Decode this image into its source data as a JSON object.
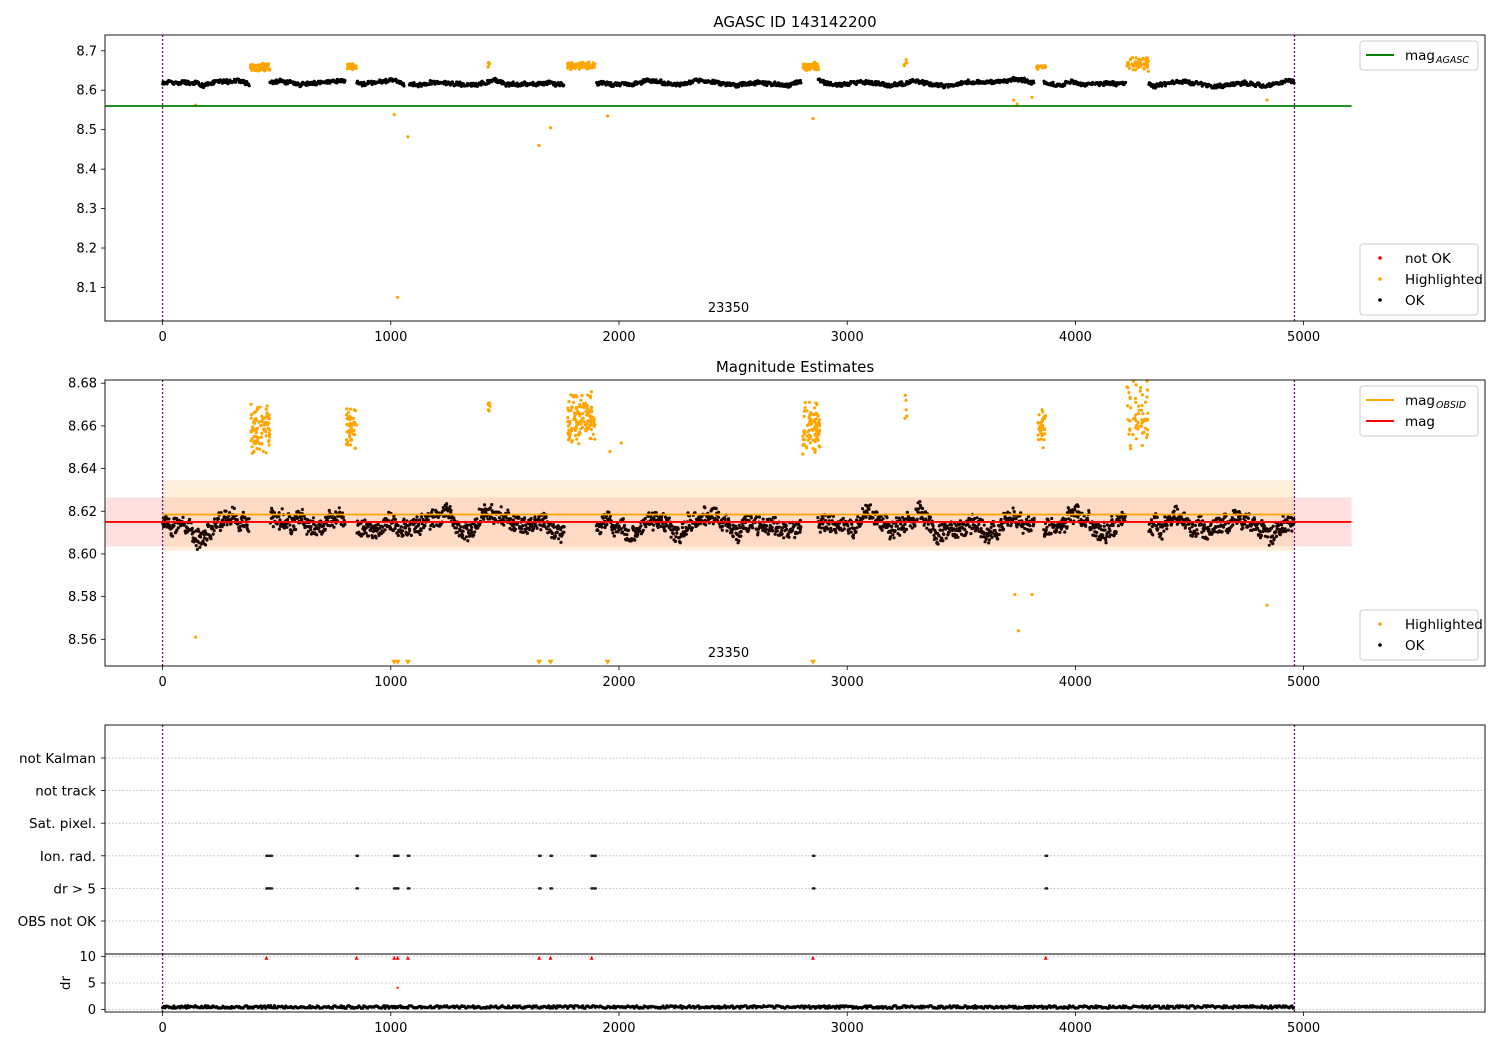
{
  "figure": {
    "background": "#ffffff"
  },
  "chart_data": [
    {
      "id": "agasc",
      "type": "scatter",
      "title": "AGASC ID 143142200",
      "xlim": [
        -250,
        5750
      ],
      "ylim": [
        8.015,
        8.74
      ],
      "xticks": [
        0,
        1000,
        2000,
        3000,
        4000,
        5000
      ],
      "yticks": [
        8.1,
        8.2,
        8.3,
        8.4,
        8.5,
        8.6,
        8.7
      ],
      "ytick_decimals": 1,
      "vlines": [
        0,
        4960
      ],
      "vline_color": "#800080",
      "obs_label": {
        "text": "23350",
        "x": 2480
      },
      "hlines": [
        {
          "y": 8.56,
          "x0": -250,
          "x1": 5210,
          "color": "#008000",
          "label": "mag_AGASC"
        }
      ],
      "baseline": {
        "mean": 8.618,
        "amp": 0.013,
        "x0": 0,
        "x1": 4960,
        "n": 1900,
        "seed": 11,
        "color": "#000000"
      },
      "gaps": [
        [
          380,
          470
        ],
        [
          800,
          850
        ],
        [
          1060,
          1080
        ],
        [
          1760,
          1900
        ],
        [
          2800,
          2870
        ],
        [
          3820,
          3860
        ],
        [
          4220,
          4320
        ]
      ],
      "clusters": [
        {
          "x0": 385,
          "x1": 470,
          "y0": 8.648,
          "y1": 8.668,
          "n": 70
        },
        {
          "x0": 805,
          "x1": 848,
          "y0": 8.652,
          "y1": 8.668,
          "n": 40
        },
        {
          "x0": 1425,
          "x1": 1435,
          "y0": 8.658,
          "y1": 8.672,
          "n": 6
        },
        {
          "x0": 1775,
          "x1": 1895,
          "y0": 8.652,
          "y1": 8.672,
          "n": 90
        },
        {
          "x0": 2805,
          "x1": 2875,
          "y0": 8.65,
          "y1": 8.67,
          "n": 60
        },
        {
          "x0": 3250,
          "x1": 3262,
          "y0": 8.66,
          "y1": 8.678,
          "n": 5
        },
        {
          "x0": 3830,
          "x1": 3870,
          "y0": 8.65,
          "y1": 8.666,
          "n": 20
        },
        {
          "x0": 4225,
          "x1": 4320,
          "y0": 8.65,
          "y1": 8.682,
          "n": 60
        }
      ],
      "outliers": [
        [
          145,
          8.562
        ],
        [
          1015,
          8.538
        ],
        [
          1030,
          8.075
        ],
        [
          1075,
          8.482
        ],
        [
          1650,
          8.46
        ],
        [
          1700,
          8.505
        ],
        [
          1950,
          8.535
        ],
        [
          2850,
          8.528
        ],
        [
          3730,
          8.575
        ],
        [
          3745,
          8.565
        ],
        [
          3810,
          8.582
        ],
        [
          4840,
          8.575
        ]
      ],
      "highlight_color": "#ffa500",
      "legends": [
        {
          "loc": "top-right",
          "items": [
            {
              "kind": "line",
              "color": "#008000",
              "label": "mag",
              "sub": "AGASC"
            }
          ]
        },
        {
          "loc": "bottom-right",
          "items": [
            {
              "kind": "dot",
              "color": "#ff0000",
              "label": "not OK"
            },
            {
              "kind": "dot",
              "color": "#ffa500",
              "label": "Highlighted"
            },
            {
              "kind": "dot",
              "color": "#000000",
              "label": "OK"
            }
          ]
        }
      ]
    },
    {
      "id": "estimates",
      "type": "scatter",
      "title": "Magnitude Estimates",
      "xlim": [
        -250,
        5750
      ],
      "ylim": [
        8.5475,
        8.6815
      ],
      "xticks": [
        0,
        1000,
        2000,
        3000,
        4000,
        5000
      ],
      "yticks": [
        8.56,
        8.58,
        8.6,
        8.62,
        8.64,
        8.66,
        8.68
      ],
      "ytick_decimals": 2,
      "vlines": [
        0,
        4960
      ],
      "vline_color": "#800080",
      "obs_label": {
        "text": "23350",
        "x": 2480
      },
      "bands": [
        {
          "y0": 8.6035,
          "y1": 8.6265,
          "x0": -250,
          "x1": 5210,
          "color": "#ff9999",
          "opacity": 0.3
        },
        {
          "y0": 8.6015,
          "y1": 8.6345,
          "x0": 0,
          "x1": 4960,
          "color": "#ffcc88",
          "opacity": 0.3
        }
      ],
      "hlines": [
        {
          "y": 8.6185,
          "x0": 0,
          "x1": 4960,
          "color": "#ffa500",
          "label": "mag_OBSID"
        },
        {
          "y": 8.615,
          "x0": -250,
          "x1": 5210,
          "color": "#ff0000",
          "label": "mag"
        }
      ],
      "baseline": {
        "mean": 8.614,
        "amp": 0.011,
        "x0": 0,
        "x1": 4960,
        "n": 2600,
        "seed": 23,
        "color": "#1a0500"
      },
      "gaps": [
        [
          380,
          470
        ],
        [
          800,
          850
        ],
        [
          1760,
          1900
        ],
        [
          2800,
          2870
        ],
        [
          3820,
          3860
        ],
        [
          4220,
          4320
        ]
      ],
      "clusters": [
        {
          "x0": 385,
          "x1": 470,
          "y0": 8.648,
          "y1": 8.67,
          "n": 90
        },
        {
          "x0": 805,
          "x1": 850,
          "y0": 8.65,
          "y1": 8.67,
          "n": 50
        },
        {
          "x0": 1425,
          "x1": 1435,
          "y0": 8.662,
          "y1": 8.673,
          "n": 6
        },
        {
          "x0": 1775,
          "x1": 1895,
          "y0": 8.652,
          "y1": 8.675,
          "n": 130
        },
        {
          "x0": 2805,
          "x1": 2880,
          "y0": 8.648,
          "y1": 8.673,
          "n": 90
        },
        {
          "x0": 3250,
          "x1": 3262,
          "y0": 8.656,
          "y1": 8.677,
          "n": 5
        },
        {
          "x0": 3835,
          "x1": 3870,
          "y0": 8.65,
          "y1": 8.669,
          "n": 35
        },
        {
          "x0": 4225,
          "x1": 4320,
          "y0": 8.65,
          "y1": 8.681,
          "n": 60
        }
      ],
      "outliers": [
        [
          145,
          8.561
        ],
        [
          1960,
          8.648
        ],
        [
          2010,
          8.652
        ],
        [
          3735,
          8.581
        ],
        [
          3750,
          8.564
        ],
        [
          3810,
          8.581
        ],
        [
          4840,
          8.576
        ]
      ],
      "triangles": [
        1015,
        1030,
        1075,
        1650,
        1700,
        1950,
        2850
      ],
      "triangle_y": 8.549,
      "highlight_color": "#ffa500",
      "legends": [
        {
          "loc": "top-right",
          "items": [
            {
              "kind": "line",
              "color": "#ffa500",
              "label": "mag",
              "sub": "OBSID"
            },
            {
              "kind": "line",
              "color": "#ff0000",
              "label": "mag"
            }
          ]
        },
        {
          "loc": "bottom-right",
          "items": [
            {
              "kind": "dot",
              "color": "#ffa500",
              "label": "Highlighted"
            },
            {
              "kind": "dot",
              "color": "#000000",
              "label": "OK"
            }
          ]
        }
      ]
    },
    {
      "id": "flags",
      "type": "scatter",
      "categories": [
        "not Kalman",
        "not track",
        "Sat. pixel.",
        "Ion. rad.",
        "dr > 5",
        "OBS not OK"
      ],
      "xlim": [
        -250,
        5750
      ],
      "events": [
        {
          "x": 455,
          "w": 22,
          "ion": true,
          "dr": true
        },
        {
          "x": 850,
          "w": 0,
          "ion": true,
          "dr": true
        },
        {
          "x": 1015,
          "w": 18,
          "ion": true,
          "dr": true
        },
        {
          "x": 1075,
          "w": 0,
          "ion": true,
          "dr": true
        },
        {
          "x": 1650,
          "w": 0,
          "ion": true,
          "dr": true
        },
        {
          "x": 1700,
          "w": 0,
          "ion": true,
          "dr": true
        },
        {
          "x": 1880,
          "w": 16,
          "ion": true,
          "dr": true
        },
        {
          "x": 2850,
          "w": 0,
          "ion": true,
          "dr": true
        },
        {
          "x": 3870,
          "w": 0,
          "ion": true,
          "dr": true
        }
      ],
      "vlines": [
        0,
        4960
      ],
      "vline_color": "#800080"
    },
    {
      "id": "dr",
      "type": "scatter",
      "ylabel": "dr",
      "xlim": [
        -250,
        5750
      ],
      "ylim": [
        -0.5,
        10.5
      ],
      "yticks": [
        0,
        5,
        10
      ],
      "xticks": [
        0,
        1000,
        2000,
        3000,
        4000,
        5000
      ],
      "vlines": [
        0,
        4960
      ],
      "vline_color": "#800080",
      "series": {
        "x0": 0,
        "x1": 4960,
        "n": 900,
        "seed": 5,
        "mean": 0.45,
        "amp": 0.25
      },
      "red_events": [
        455,
        850,
        1015,
        1030,
        1075,
        1650,
        1700,
        1880,
        2850,
        3870
      ],
      "red_value": 9.8,
      "red_extra": [
        [
          1030,
          4.1
        ]
      ]
    }
  ]
}
